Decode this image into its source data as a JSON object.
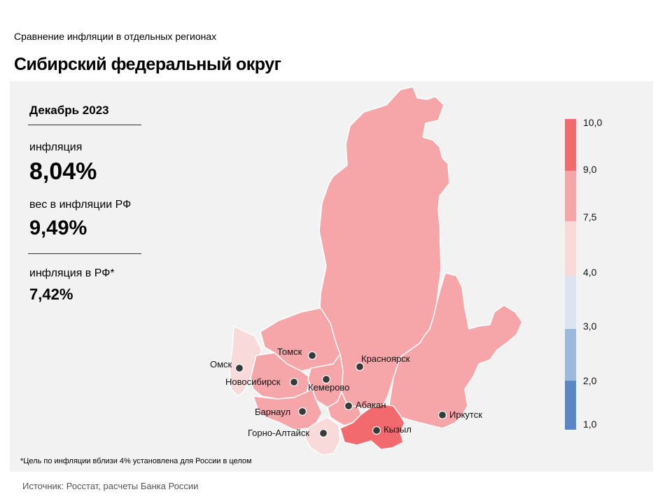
{
  "header": {
    "subtitle": "Сравнение  инфляции  в отдельных  регионах",
    "title": "Сибирский федеральный округ"
  },
  "stats": {
    "period": "Декабрь 2023",
    "inflation_label": "инфляция",
    "inflation_value": "8,04%",
    "weight_label": "вес в инфляции  РФ",
    "weight_value": "9,49%",
    "rf_label": "инфляция  в РФ*",
    "rf_value": "7,42%"
  },
  "legend": {
    "ticks": [
      "10,0",
      "9,0",
      "7,5",
      "4,0",
      "3,0",
      "2,0",
      "1,0"
    ],
    "colors": [
      "#f36a6e",
      "#f6a6a9",
      "#f9dadb",
      "#dce4f2",
      "#9db8dd",
      "#5b88c4"
    ]
  },
  "cities": [
    {
      "name": "Томск"
    },
    {
      "name": "Красноярск"
    },
    {
      "name": "Омск"
    },
    {
      "name": "Новосибирск"
    },
    {
      "name": "Кемерово"
    },
    {
      "name": "Абакан"
    },
    {
      "name": "Барнаул"
    },
    {
      "name": "Кызыл"
    },
    {
      "name": "Иркутск"
    },
    {
      "name": "Горно-Алтайск"
    }
  ],
  "regions": {
    "krasnoyarsk": {
      "color": "#f6a6a9"
    },
    "irkutsk": {
      "color": "#f6a6a9"
    },
    "tomsk": {
      "color": "#f6a6a9"
    },
    "omsk": {
      "color": "#f9dadb"
    },
    "novosibirsk": {
      "color": "#f6a6a9"
    },
    "kemerovo": {
      "color": "#f6a6a9"
    },
    "altai_krai": {
      "color": "#f6a6a9"
    },
    "altai_republic": {
      "color": "#f9dadb"
    },
    "khakassia": {
      "color": "#f6a6a9"
    },
    "tyva": {
      "color": "#f36a6e"
    }
  },
  "footnote": "*Цель по инфляции вблизи 4% установлена для России в целом",
  "source": "Источник: Росстат, расчеты Банка России"
}
